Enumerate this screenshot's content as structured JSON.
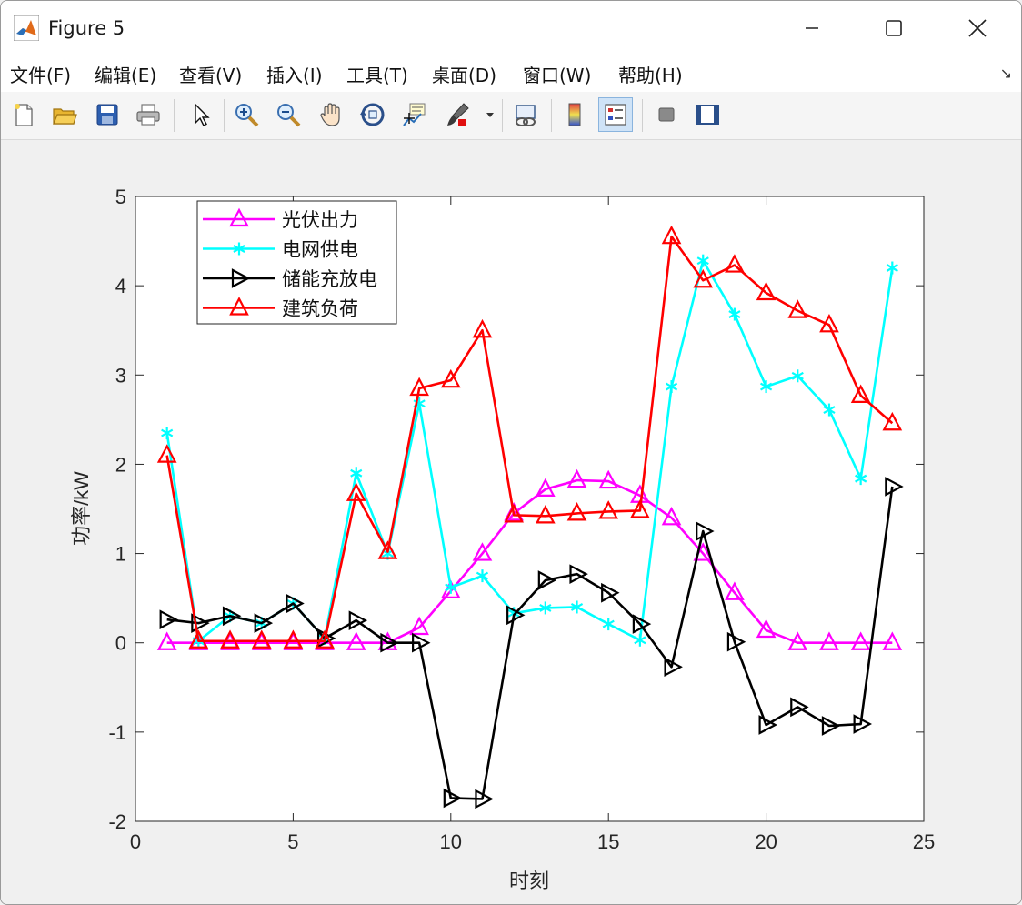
{
  "window": {
    "title": "Figure 5",
    "controls": {
      "minimize": "—",
      "maximize": "☐",
      "close": "✕"
    }
  },
  "menu": {
    "items": [
      "文件(F)",
      "编辑(E)",
      "查看(V)",
      "插入(I)",
      "工具(T)",
      "桌面(D)",
      "窗口(W)",
      "帮助(H)"
    ],
    "overflow_icon": "arrow-icon"
  },
  "toolbar": {
    "buttons": [
      "new-figure-icon",
      "open-file-icon",
      "save-icon",
      "print-icon",
      "pointer-icon",
      "zoom-in-icon",
      "zoom-out-icon",
      "pan-hand-icon",
      "rotate-3d-icon",
      "data-cursor-icon",
      "brush-icon",
      "link-plot-icon",
      "colorbar-icon",
      "legend-icon",
      "hide-plot-tools-icon",
      "show-plot-tools-icon"
    ]
  },
  "chart_data": {
    "type": "line",
    "title": "",
    "xlabel": "时刻",
    "ylabel": "功率/kW",
    "xlim": [
      0,
      25
    ],
    "ylim": [
      -2,
      5
    ],
    "xticks": [
      0,
      5,
      10,
      15,
      20,
      25
    ],
    "yticks": [
      -2,
      -1,
      0,
      1,
      2,
      3,
      4,
      5
    ],
    "grid": false,
    "legend_position": "top-left",
    "x": [
      1,
      2,
      3,
      4,
      5,
      6,
      7,
      8,
      9,
      10,
      11,
      12,
      13,
      14,
      15,
      16,
      17,
      18,
      19,
      20,
      21,
      22,
      23,
      24
    ],
    "series": [
      {
        "name": "光伏出力",
        "color": "#ff00ff",
        "marker": "triangle-up",
        "values": [
          0,
          0,
          0,
          0,
          0,
          0,
          0,
          0,
          0.17,
          0.58,
          1.0,
          1.45,
          1.72,
          1.82,
          1.81,
          1.65,
          1.4,
          1.0,
          0.56,
          0.14,
          0,
          0,
          0,
          0
        ]
      },
      {
        "name": "电网供电",
        "color": "#00ffff",
        "marker": "asterisk",
        "values": [
          2.35,
          0.02,
          0.3,
          0.22,
          0.44,
          0.05,
          1.9,
          1.0,
          2.68,
          0.62,
          0.75,
          0.33,
          0.39,
          0.4,
          0.21,
          0.03,
          2.87,
          4.28,
          3.68,
          2.87,
          2.99,
          2.61,
          1.84,
          4.2
        ]
      },
      {
        "name": "储能充放电",
        "color": "#000000",
        "marker": "triangle-right",
        "values": [
          0.26,
          0.22,
          0.3,
          0.22,
          0.44,
          0.05,
          0.25,
          0.0,
          0.0,
          -1.74,
          -1.75,
          0.31,
          0.7,
          0.77,
          0.56,
          0.21,
          -0.27,
          1.25,
          0.01,
          -0.92,
          -0.72,
          -0.93,
          -0.91,
          1.75
        ]
      },
      {
        "name": "建筑负荷",
        "color": "#ff0000",
        "marker": "triangle-up",
        "values": [
          2.1,
          0.02,
          0.02,
          0.02,
          0.02,
          0.02,
          1.67,
          1.02,
          2.85,
          2.94,
          3.5,
          1.43,
          1.42,
          1.45,
          1.47,
          1.48,
          4.55,
          4.06,
          4.23,
          3.92,
          3.72,
          3.56,
          2.77,
          2.46
        ]
      }
    ]
  }
}
